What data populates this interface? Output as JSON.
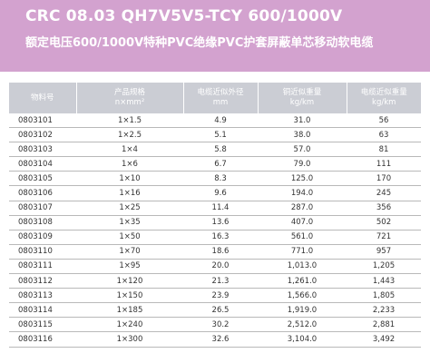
{
  "header": {
    "title": "CRC 08.03 QH7V5V5-TCY 600/1000V",
    "subtitle": "额定电压600/1000V特种PVC绝缘PVC护套屏蔽单芯移动软电缆",
    "background_color": "#d3a2cf"
  },
  "table": {
    "columns": [
      {
        "line1": "物料号",
        "line2": ""
      },
      {
        "line1": "产品规格",
        "line2": "n×mm²"
      },
      {
        "line1": "电缆近似外径",
        "line2": "mm"
      },
      {
        "line1": "铜近似重量",
        "line2": "kg/km"
      },
      {
        "line1": "电缆近似重量",
        "line2": "kg/km"
      }
    ],
    "header_color": "#cbcdd4",
    "rows": [
      {
        "id": "0803101",
        "spec": "1×1.5",
        "diameter": "4.9",
        "copper": "31.0",
        "weight": "56"
      },
      {
        "id": "0803102",
        "spec": "1×2.5",
        "diameter": "5.1",
        "copper": "38.0",
        "weight": "63"
      },
      {
        "id": "0803103",
        "spec": "1×4",
        "diameter": "5.8",
        "copper": "57.0",
        "weight": "81"
      },
      {
        "id": "0803104",
        "spec": "1×6",
        "diameter": "6.7",
        "copper": "79.0",
        "weight": "111"
      },
      {
        "id": "0803105",
        "spec": "1×10",
        "diameter": "8.3",
        "copper": "125.0",
        "weight": "170"
      },
      {
        "id": "0803106",
        "spec": "1×16",
        "diameter": "9.6",
        "copper": "194.0",
        "weight": "245"
      },
      {
        "id": "0803107",
        "spec": "1×25",
        "diameter": "11.4",
        "copper": "287.0",
        "weight": "356"
      },
      {
        "id": "0803108",
        "spec": "1×35",
        "diameter": "13.6",
        "copper": "407.0",
        "weight": "502"
      },
      {
        "id": "0803109",
        "spec": "1×50",
        "diameter": "16.3",
        "copper": "561.0",
        "weight": "721"
      },
      {
        "id": "0803110",
        "spec": "1×70",
        "diameter": "18.6",
        "copper": "771.0",
        "weight": "957"
      },
      {
        "id": "0803111",
        "spec": "1×95",
        "diameter": "20.0",
        "copper": "1,013.0",
        "weight": "1,205"
      },
      {
        "id": "0803112",
        "spec": "1×120",
        "diameter": "21.3",
        "copper": "1,261.0",
        "weight": "1,443"
      },
      {
        "id": "0803113",
        "spec": "1×150",
        "diameter": "23.9",
        "copper": "1,566.0",
        "weight": "1,805"
      },
      {
        "id": "0803114",
        "spec": "1×185",
        "diameter": "26.5",
        "copper": "1,919.0",
        "weight": "2,233"
      },
      {
        "id": "0803115",
        "spec": "1×240",
        "diameter": "30.2",
        "copper": "2,512.0",
        "weight": "2,881"
      },
      {
        "id": "0803116",
        "spec": "1×300",
        "diameter": "32.6",
        "copper": "3,104.0",
        "weight": "3,492"
      }
    ]
  }
}
